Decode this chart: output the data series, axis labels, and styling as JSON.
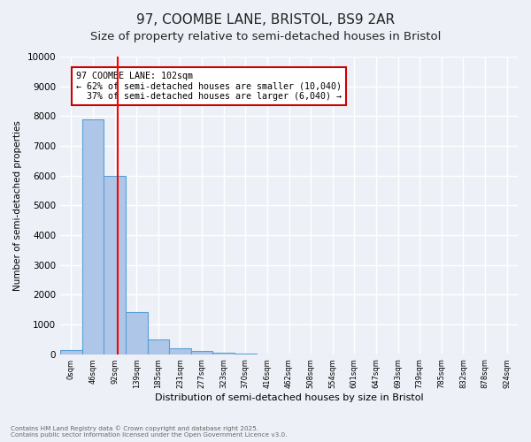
{
  "title": "97, COOMBE LANE, BRISTOL, BS9 2AR",
  "subtitle": "Size of property relative to semi-detached houses in Bristol",
  "xlabel": "Distribution of semi-detached houses by size in Bristol",
  "ylabel": "Number of semi-detached properties",
  "footer_line1": "Contains HM Land Registry data © Crown copyright and database right 2025.",
  "footer_line2": "Contains public sector information licensed under the Open Government Licence v3.0.",
  "bin_labels": [
    "0sqm",
    "46sqm",
    "92sqm",
    "139sqm",
    "185sqm",
    "231sqm",
    "277sqm",
    "323sqm",
    "370sqm",
    "416sqm",
    "462sqm",
    "508sqm",
    "554sqm",
    "601sqm",
    "647sqm",
    "693sqm",
    "739sqm",
    "785sqm",
    "832sqm",
    "878sqm",
    "924sqm"
  ],
  "bar_values": [
    150,
    7900,
    6000,
    1400,
    480,
    200,
    100,
    50,
    10,
    0,
    0,
    0,
    0,
    0,
    0,
    0,
    0,
    0,
    0,
    0,
    0
  ],
  "bar_color": "#aec6e8",
  "bar_edge_color": "#5a9fd4",
  "red_line_x": 2.12,
  "annotation_line1": "97 COOMBE LANE: 102sqm",
  "annotation_line2": "← 62% of semi-detached houses are smaller (10,040)",
  "annotation_line3": "  37% of semi-detached houses are larger (6,040) →",
  "annotation_box_color": "#ffffff",
  "annotation_box_edge": "#cc0000",
  "ylim": [
    0,
    10000
  ],
  "yticks": [
    0,
    1000,
    2000,
    3000,
    4000,
    5000,
    6000,
    7000,
    8000,
    9000,
    10000
  ],
  "bg_color": "#edf1f7",
  "grid_color": "#ffffff",
  "title_fontsize": 11,
  "subtitle_fontsize": 9.5
}
